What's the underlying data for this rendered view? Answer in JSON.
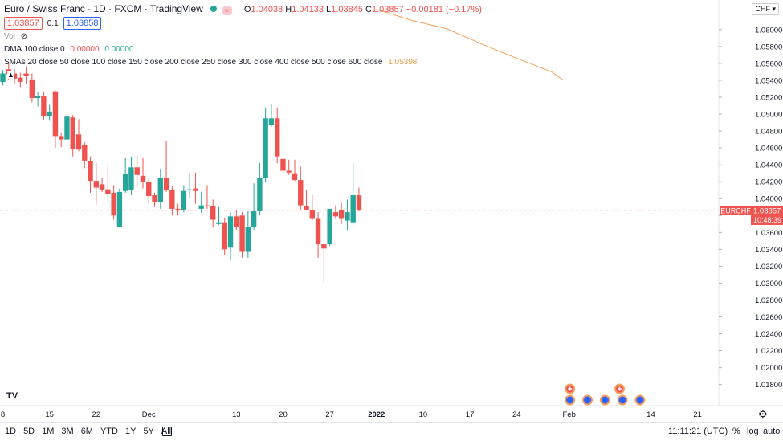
{
  "header": {
    "symbol": "Euro / Swiss Franc · 1D · FXCM · TradingView",
    "marker": "≈",
    "ohlc": {
      "o_label": "O",
      "o": "1.04038",
      "h_label": "H",
      "h": "1.04133",
      "l_label": "L",
      "l": "1.03845",
      "c_label": "C",
      "c": "1.03857",
      "change": "−0.00181 (−0.17%)"
    }
  },
  "trade": {
    "sell": "1.03857",
    "spread": "0.1",
    "buy": "1.03858"
  },
  "indicators": {
    "vol": "Vol",
    "dma_name": "DMA 100 close 0",
    "dma_v1": "0.00000",
    "dma_v2": "0.00000",
    "smas_name": "SMAs 20 close 50 close 100 close 150 close 200 close 250 close 300 close 400 close 500 close 600 close",
    "smas_value": "1.05398"
  },
  "scale": {
    "currency": "CHF"
  },
  "last_price": {
    "symbol": "EURCHF",
    "price": "1.03857",
    "countdown": "10:48:39"
  },
  "bottom": {
    "ranges": [
      "1D",
      "5D",
      "1M",
      "3M",
      "6M",
      "YTD",
      "1Y",
      "5Y",
      "All"
    ],
    "time": "11:11:21 (UTC)",
    "percent": "%",
    "log": "log",
    "auto": "auto"
  },
  "colors": {
    "up": "#26a69a",
    "down": "#ef5350",
    "sma": "#f5a05a",
    "accent": "#2962ff"
  },
  "chart_data": {
    "type": "candlestick",
    "title": "Euro / Swiss Franc · 1D · FXCM · TradingView",
    "y_ticks": [
      "1.06000",
      "1.05800",
      "1.05600",
      "1.05400",
      "1.05200",
      "1.05000",
      "1.04800",
      "1.04600",
      "1.04400",
      "1.04200",
      "1.04000",
      "1.03800",
      "1.03600",
      "1.03400",
      "1.03200",
      "1.03000",
      "1.02800",
      "1.02600",
      "1.02400",
      "1.02200",
      "1.02000",
      "1.01800"
    ],
    "y_tick_values": [
      1.06,
      1.058,
      1.056,
      1.054,
      1.052,
      1.05,
      1.048,
      1.046,
      1.044,
      1.042,
      1.04,
      1.038,
      1.036,
      1.034,
      1.032,
      1.03,
      1.028,
      1.026,
      1.024,
      1.022,
      1.02,
      1.018
    ],
    "x_labels": [
      "8",
      "15",
      "22",
      "Dec",
      "13",
      "20",
      "27",
      "2022",
      "10",
      "17",
      "24",
      "Feb",
      "14",
      "21"
    ],
    "x_label_slots": [
      0,
      8,
      16,
      25,
      40,
      48,
      56,
      64,
      72,
      80,
      88,
      97,
      111,
      119
    ],
    "candles": [
      {
        "o": 1.0538,
        "h": 1.0552,
        "l": 1.0534,
        "c": 1.0548
      },
      {
        "o": 1.0553,
        "h": 1.056,
        "l": 1.0541,
        "c": 1.0547
      },
      {
        "o": 1.0548,
        "h": 1.0553,
        "l": 1.0536,
        "c": 1.0542
      },
      {
        "o": 1.0543,
        "h": 1.0549,
        "l": 1.0532,
        "c": 1.0538
      },
      {
        "o": 1.0548,
        "h": 1.0556,
        "l": 1.0536,
        "c": 1.0545
      },
      {
        "o": 1.0541,
        "h": 1.0548,
        "l": 1.0514,
        "c": 1.0519
      },
      {
        "o": 1.0519,
        "h": 1.0526,
        "l": 1.0509,
        "c": 1.0521
      },
      {
        "o": 1.0521,
        "h": 1.0526,
        "l": 1.0493,
        "c": 1.0498
      },
      {
        "o": 1.0498,
        "h": 1.0511,
        "l": 1.0492,
        "c": 1.0503
      },
      {
        "o": 1.0527,
        "h": 1.0528,
        "l": 1.046,
        "c": 1.0474
      },
      {
        "o": 1.0474,
        "h": 1.0478,
        "l": 1.0461,
        "c": 1.047
      },
      {
        "o": 1.047,
        "h": 1.0518,
        "l": 1.0468,
        "c": 1.0497
      },
      {
        "o": 1.0496,
        "h": 1.0499,
        "l": 1.045,
        "c": 1.0459
      },
      {
        "o": 1.0476,
        "h": 1.0494,
        "l": 1.0456,
        "c": 1.0458
      },
      {
        "o": 1.0464,
        "h": 1.0467,
        "l": 1.0436,
        "c": 1.0445
      },
      {
        "o": 1.0444,
        "h": 1.045,
        "l": 1.0407,
        "c": 1.0421
      },
      {
        "o": 1.0421,
        "h": 1.0442,
        "l": 1.0393,
        "c": 1.0413
      },
      {
        "o": 1.0417,
        "h": 1.0424,
        "l": 1.0408,
        "c": 1.041
      },
      {
        "o": 1.0411,
        "h": 1.0439,
        "l": 1.0395,
        "c": 1.0405
      },
      {
        "o": 1.0407,
        "h": 1.0416,
        "l": 1.0375,
        "c": 1.038
      },
      {
        "o": 1.0367,
        "h": 1.0412,
        "l": 1.0366,
        "c": 1.0408
      },
      {
        "o": 1.0409,
        "h": 1.0448,
        "l": 1.0407,
        "c": 1.0429
      },
      {
        "o": 1.041,
        "h": 1.045,
        "l": 1.0404,
        "c": 1.0437
      },
      {
        "o": 1.0437,
        "h": 1.0452,
        "l": 1.0415,
        "c": 1.0428
      },
      {
        "o": 1.0427,
        "h": 1.0448,
        "l": 1.0412,
        "c": 1.042
      },
      {
        "o": 1.042,
        "h": 1.0424,
        "l": 1.0394,
        "c": 1.0403
      },
      {
        "o": 1.0404,
        "h": 1.0407,
        "l": 1.039,
        "c": 1.0396
      },
      {
        "o": 1.0396,
        "h": 1.0435,
        "l": 1.0388,
        "c": 1.0424
      },
      {
        "o": 1.0424,
        "h": 1.0468,
        "l": 1.0408,
        "c": 1.041
      },
      {
        "o": 1.041,
        "h": 1.0415,
        "l": 1.038,
        "c": 1.0388
      },
      {
        "o": 1.0388,
        "h": 1.0394,
        "l": 1.038,
        "c": 1.0387
      },
      {
        "o": 1.0387,
        "h": 1.0416,
        "l": 1.0384,
        "c": 1.0409
      },
      {
        "o": 1.041,
        "h": 1.043,
        "l": 1.04,
        "c": 1.0411
      },
      {
        "o": 1.0412,
        "h": 1.0431,
        "l": 1.0394,
        "c": 1.0409
      },
      {
        "o": 1.0388,
        "h": 1.0408,
        "l": 1.0383,
        "c": 1.0392
      },
      {
        "o": 1.0392,
        "h": 1.0416,
        "l": 1.0388,
        "c": 1.0391
      },
      {
        "o": 1.0391,
        "h": 1.0399,
        "l": 1.0366,
        "c": 1.0375
      },
      {
        "o": 1.037,
        "h": 1.039,
        "l": 1.0369,
        "c": 1.0372
      },
      {
        "o": 1.0372,
        "h": 1.0377,
        "l": 1.0333,
        "c": 1.034
      },
      {
        "o": 1.0342,
        "h": 1.0384,
        "l": 1.0327,
        "c": 1.0379
      },
      {
        "o": 1.0379,
        "h": 1.0386,
        "l": 1.0363,
        "c": 1.0366
      },
      {
        "o": 1.038,
        "h": 1.0384,
        "l": 1.033,
        "c": 1.0337
      },
      {
        "o": 1.0337,
        "h": 1.0385,
        "l": 1.033,
        "c": 1.0366
      },
      {
        "o": 1.0366,
        "h": 1.0418,
        "l": 1.0363,
        "c": 1.0385
      },
      {
        "o": 1.0385,
        "h": 1.0442,
        "l": 1.038,
        "c": 1.0424
      },
      {
        "o": 1.0424,
        "h": 1.0508,
        "l": 1.0419,
        "c": 1.0495
      },
      {
        "o": 1.0487,
        "h": 1.0512,
        "l": 1.0485,
        "c": 1.0495
      },
      {
        "o": 1.0495,
        "h": 1.0508,
        "l": 1.0442,
        "c": 1.045
      },
      {
        "o": 1.0447,
        "h": 1.0483,
        "l": 1.0431,
        "c": 1.0433
      },
      {
        "o": 1.0433,
        "h": 1.0446,
        "l": 1.0428,
        "c": 1.0431
      },
      {
        "o": 1.043,
        "h": 1.0446,
        "l": 1.0421,
        "c": 1.0422
      },
      {
        "o": 1.0422,
        "h": 1.0438,
        "l": 1.0386,
        "c": 1.0392
      },
      {
        "o": 1.0391,
        "h": 1.041,
        "l": 1.0386,
        "c": 1.0387
      },
      {
        "o": 1.0386,
        "h": 1.0404,
        "l": 1.0374,
        "c": 1.0376
      },
      {
        "o": 1.0376,
        "h": 1.0384,
        "l": 1.033,
        "c": 1.0346
      },
      {
        "o": 1.0346,
        "h": 1.0346,
        "l": 1.0301,
        "c": 1.0341
      },
      {
        "o": 1.0346,
        "h": 1.0386,
        "l": 1.0344,
        "c": 1.0388
      },
      {
        "o": 1.0384,
        "h": 1.0392,
        "l": 1.0376,
        "c": 1.0379
      },
      {
        "o": 1.0386,
        "h": 1.0395,
        "l": 1.037,
        "c": 1.0376
      },
      {
        "o": 1.0374,
        "h": 1.0399,
        "l": 1.0363,
        "c": 1.0384
      },
      {
        "o": 1.0372,
        "h": 1.0442,
        "l": 1.0369,
        "c": 1.0404
      },
      {
        "o": 1.0404,
        "h": 1.0413,
        "l": 1.0385,
        "c": 1.0386
      }
    ],
    "sma_line": [
      {
        "slot": 64,
        "y": 1.0624
      },
      {
        "slot": 70,
        "y": 1.0611
      },
      {
        "slot": 76,
        "y": 1.0601
      },
      {
        "slot": 82,
        "y": 1.0583
      },
      {
        "slot": 88,
        "y": 1.0566
      },
      {
        "slot": 94,
        "y": 1.055
      },
      {
        "slot": 96,
        "y": 1.054
      }
    ],
    "ylim": [
      1.0155,
      1.0635
    ]
  }
}
